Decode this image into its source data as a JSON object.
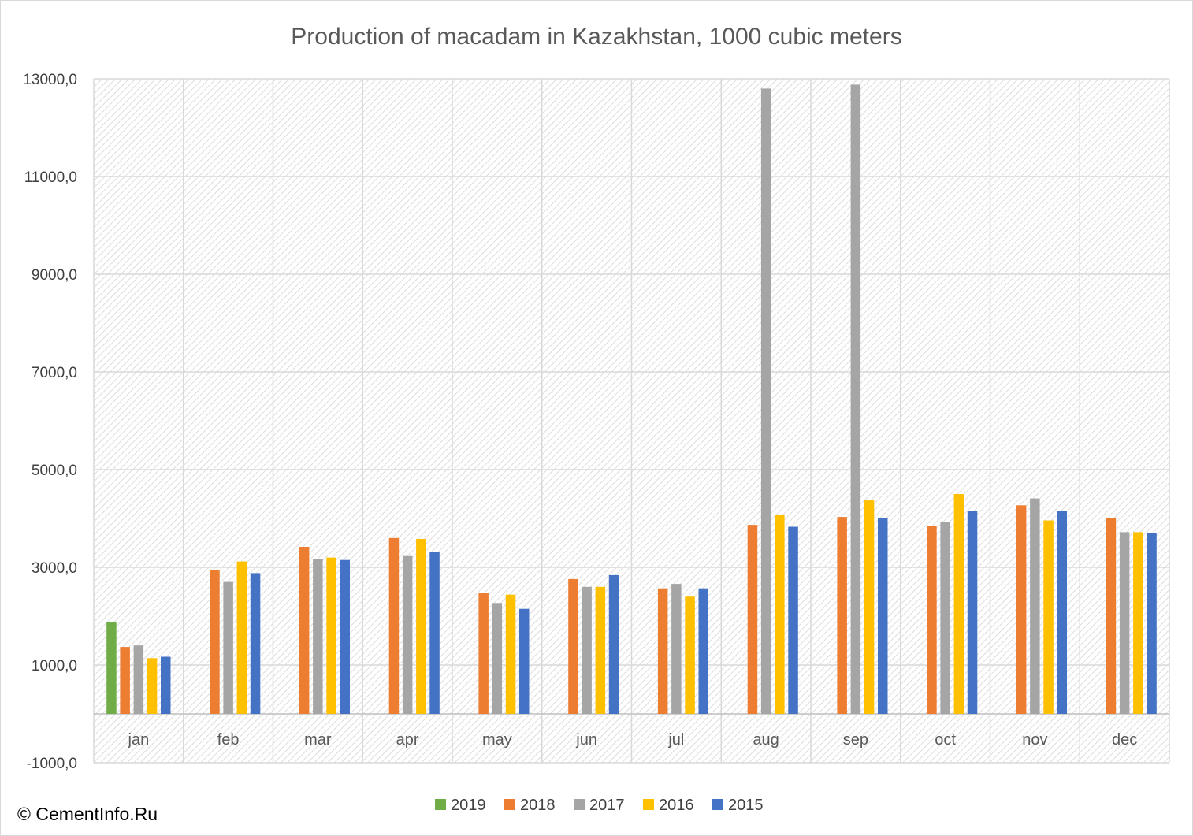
{
  "chart_data": {
    "type": "bar",
    "title": "Production of macadam in Kazakhstan, 1000 cubic meters",
    "categories": [
      "jan",
      "feb",
      "mar",
      "apr",
      "may",
      "jun",
      "jul",
      "aug",
      "sep",
      "oct",
      "nov",
      "dec"
    ],
    "y_ticks": [
      "13000,0",
      "11000,0",
      "9000,0",
      "7000,0",
      "5000,0",
      "3000,0",
      "1000,0",
      "-1000,0"
    ],
    "ylim": [
      -1000,
      13000
    ],
    "grid": true,
    "legend_position": "bottom",
    "series": [
      {
        "name": "2019",
        "color": "#70ad47",
        "values": [
          1880,
          null,
          null,
          null,
          null,
          null,
          null,
          null,
          null,
          null,
          null,
          null
        ]
      },
      {
        "name": "2018",
        "color": "#ed7d31",
        "values": [
          1370,
          2940,
          3420,
          3600,
          2470,
          2760,
          2570,
          3870,
          4030,
          3850,
          4270,
          4000
        ]
      },
      {
        "name": "2017",
        "color": "#a5a5a5",
        "values": [
          1400,
          2700,
          3170,
          3230,
          2270,
          2600,
          2660,
          12800,
          12880,
          3920,
          4410,
          3720
        ]
      },
      {
        "name": "2016",
        "color": "#ffc000",
        "values": [
          1140,
          3120,
          3200,
          3580,
          2440,
          2600,
          2400,
          4080,
          4370,
          4500,
          3960,
          3720
        ]
      },
      {
        "name": "2015",
        "color": "#4472c4",
        "values": [
          1170,
          2880,
          3150,
          3310,
          2150,
          2840,
          2570,
          3830,
          4000,
          4150,
          4160,
          3700
        ]
      }
    ]
  },
  "watermark": "© CementInfo.Ru"
}
